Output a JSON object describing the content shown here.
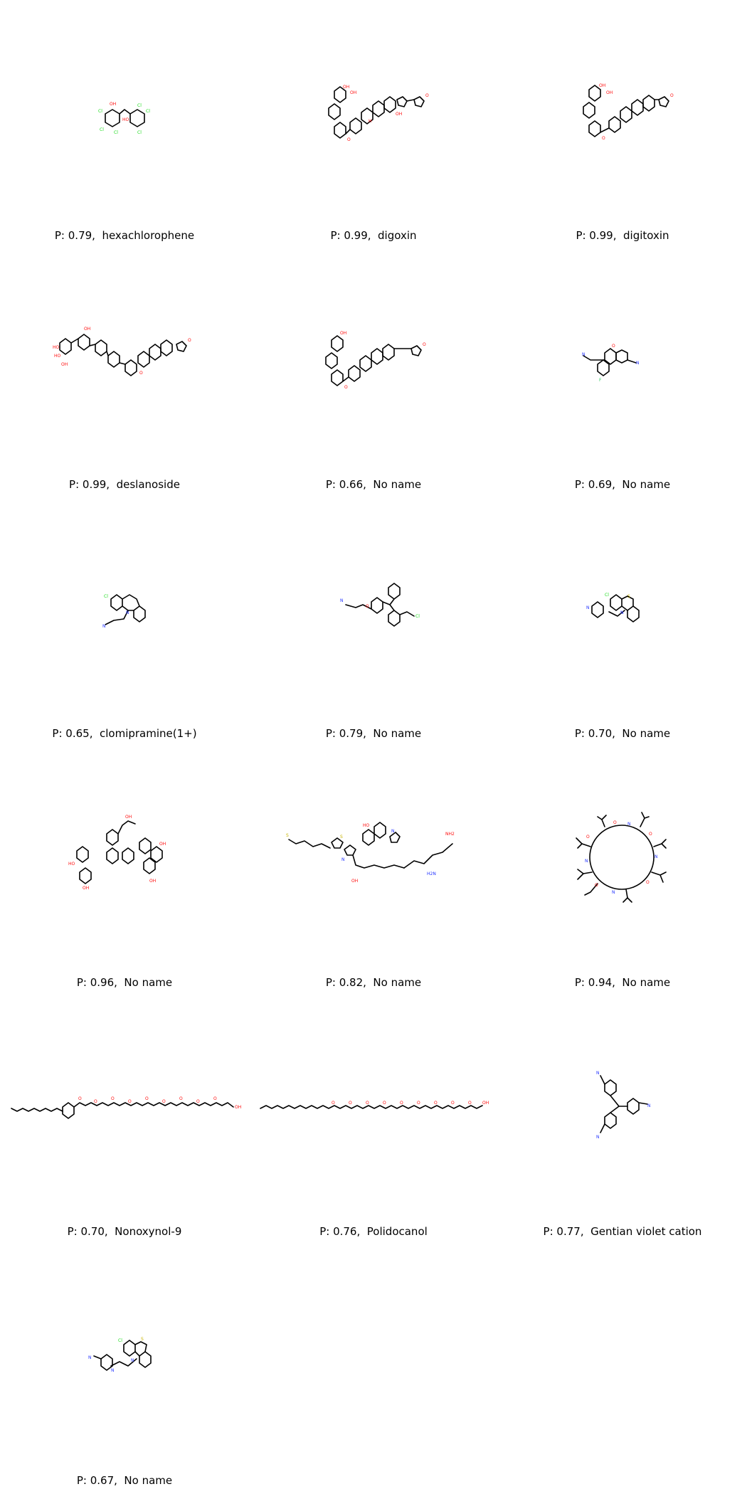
{
  "molecules": [
    {
      "prob": "0.79",
      "name": "hexachlorophene",
      "label": "P: 0.79,  hexachlorophene"
    },
    {
      "prob": "0.99",
      "name": "digoxin",
      "label": "P: 0.99,  digoxin"
    },
    {
      "prob": "0.99",
      "name": "digitoxin",
      "label": "P: 0.99,  digitoxin"
    },
    {
      "prob": "0.99",
      "name": "deslanoside",
      "label": "P: 0.99,  deslanoside"
    },
    {
      "prob": "0.66",
      "name": "No name",
      "label": "P: 0.66,  No name"
    },
    {
      "prob": "0.69",
      "name": "No name",
      "label": "P: 0.69,  No name"
    },
    {
      "prob": "0.65",
      "name": "clomipramine(1+)",
      "label": "P: 0.65,  clomipramine(1+)"
    },
    {
      "prob": "0.79",
      "name": "No name",
      "label": "P: 0.79,  No name"
    },
    {
      "prob": "0.70",
      "name": "No name",
      "label": "P: 0.70,  No name"
    },
    {
      "prob": "0.96",
      "name": "No name",
      "label": "P: 0.96,  No name"
    },
    {
      "prob": "0.82",
      "name": "No name",
      "label": "P: 0.82,  No name"
    },
    {
      "prob": "0.94",
      "name": "No name",
      "label": "P: 0.94,  No name"
    },
    {
      "prob": "0.70",
      "name": "Nonoxynol-9",
      "label": "P: 0.70,  Nonoxynol-9"
    },
    {
      "prob": "0.76",
      "name": "Polidocanol",
      "label": "P: 0.76,  Polidocanol"
    },
    {
      "prob": "0.77",
      "name": "Gentian violet cation",
      "label": "P: 0.77,  Gentian violet cation"
    },
    {
      "prob": "0.67",
      "name": "No name",
      "label": "P: 0.67,  No name"
    }
  ],
  "colors": {
    "oxygen": "#ff0d0d",
    "nitrogen": "#2233ff",
    "chlorine": "#1fdd1f",
    "sulfur": "#c8b400",
    "bond": "#000000"
  }
}
